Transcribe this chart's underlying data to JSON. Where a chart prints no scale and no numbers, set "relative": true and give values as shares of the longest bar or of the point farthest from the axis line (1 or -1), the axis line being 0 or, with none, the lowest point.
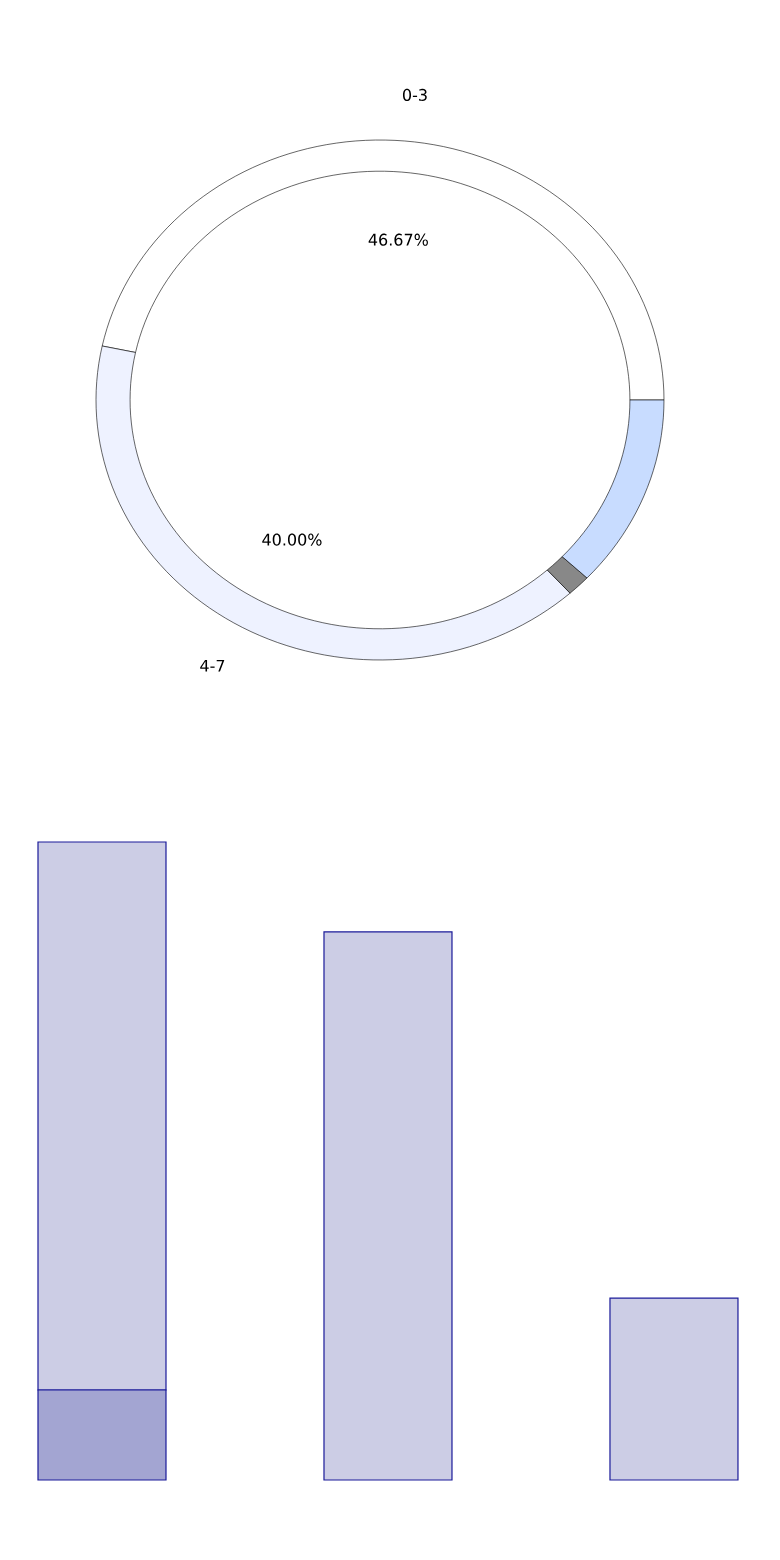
{
  "chart_data": [
    {
      "type": "donut",
      "categories": [
        "0-3",
        "4-7",
        null,
        null
      ],
      "values": [
        46.67,
        40.0,
        1.33,
        12.0
      ],
      "colors": [
        "#ffffff",
        "#eef2ff",
        "#888888",
        "#c8dcff"
      ],
      "value_labels": [
        "46.67%",
        "40.00%",
        null,
        null
      ]
    },
    {
      "type": "bar",
      "relative": true,
      "stacked": true,
      "categories": [
        null,
        null,
        null
      ],
      "series": [
        {
          "color": "#a3a5d2",
          "values": [
            0.141,
            0,
            0
          ]
        },
        {
          "color": "#cccde5",
          "values": [
            0.859,
            0.859,
            0.285
          ]
        }
      ]
    }
  ]
}
